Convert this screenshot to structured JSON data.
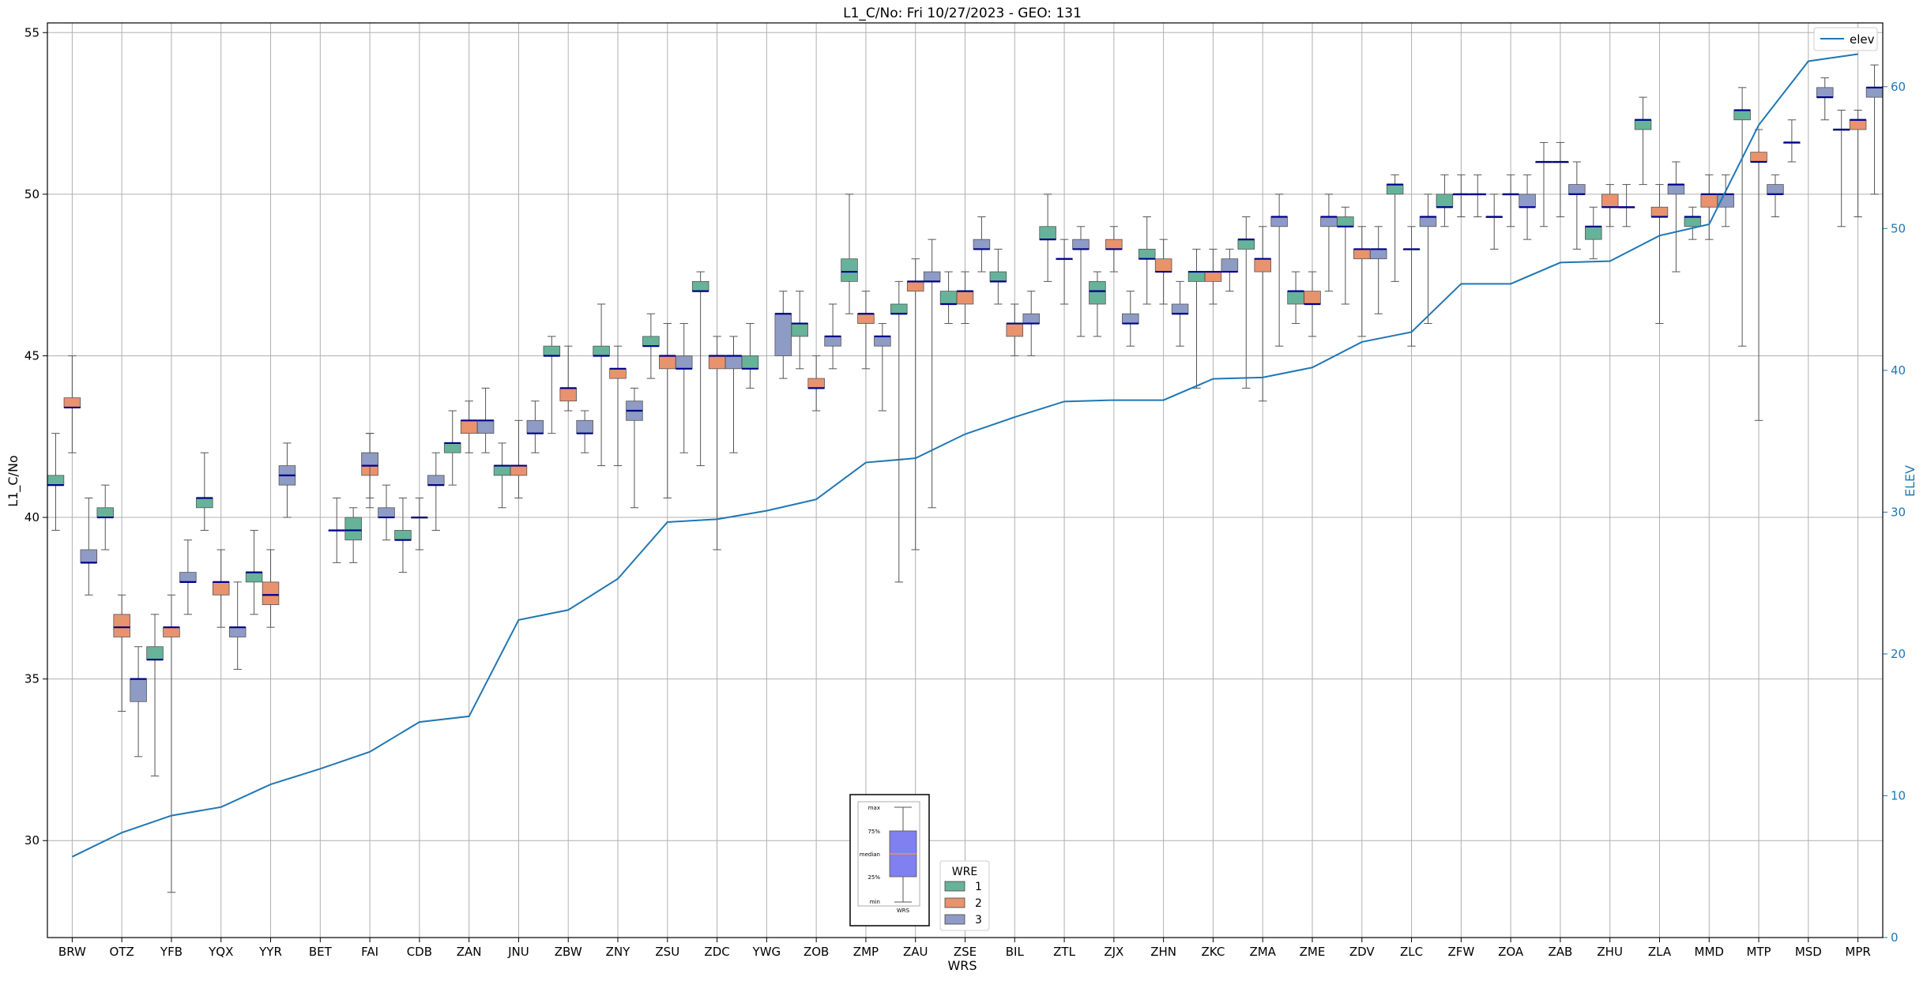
{
  "chart_data": {
    "type": "box",
    "title": "L1_C/No: Fri 10/27/2023 - GEO: 131",
    "xlabel": "WRS",
    "ylabel": "L1_C/No",
    "y2label": "ELEV",
    "ylim": [
      27,
      55.3
    ],
    "y2lim": [
      0,
      64.5
    ],
    "yticks": [
      30,
      35,
      40,
      45,
      50,
      55
    ],
    "y2ticks": [
      0,
      10,
      20,
      30,
      40,
      50,
      60
    ],
    "grid": true,
    "categories": [
      "BRW",
      "OTZ",
      "YFB",
      "YQX",
      "YYR",
      "BET",
      "FAI",
      "CDB",
      "ZAN",
      "JNU",
      "ZBW",
      "ZNY",
      "ZSU",
      "ZDC",
      "YWG",
      "ZOB",
      "ZMP",
      "ZAU",
      "ZSE",
      "BIL",
      "ZTL",
      "ZJX",
      "ZHN",
      "ZKC",
      "ZMA",
      "ZME",
      "ZDV",
      "ZLC",
      "ZFW",
      "ZOA",
      "ZAB",
      "ZHU",
      "ZLA",
      "MMD",
      "MTP",
      "MSD",
      "MPR"
    ],
    "wre_colors": {
      "1": "#66b39a",
      "2": "#e8936e",
      "3": "#8e9bc4"
    },
    "median_color": "#00008b",
    "line_color": "#1f77b4",
    "elev_series": {
      "name": "elev",
      "values": [
        5.7,
        7.4,
        8.6,
        9.2,
        10.8,
        11.9,
        13.1,
        15.2,
        15.6,
        22.4,
        23.1,
        25.3,
        29.3,
        29.5,
        30.1,
        30.9,
        33.5,
        33.8,
        35.5,
        36.7,
        37.8,
        37.9,
        37.9,
        39.4,
        39.5,
        40.2,
        42.0,
        42.7,
        46.1,
        46.1,
        47.6,
        47.7,
        49.5,
        50.3,
        57.3,
        61.8,
        62.3
      ]
    },
    "boxes": [
      {
        "cat": "BRW",
        "wre": "1",
        "min": 39.6,
        "q1": 41.0,
        "median": 41.0,
        "q3": 41.3,
        "max": 42.6
      },
      {
        "cat": "BRW",
        "wre": "2",
        "min": 42.0,
        "q1": 43.4,
        "median": 43.4,
        "q3": 43.7,
        "max": 45.0
      },
      {
        "cat": "BRW",
        "wre": "3",
        "min": 37.6,
        "q1": 38.6,
        "median": 38.6,
        "q3": 39.0,
        "max": 40.6
      },
      {
        "cat": "OTZ",
        "wre": "1",
        "min": 39.0,
        "q1": 40.0,
        "median": 40.0,
        "q3": 40.3,
        "max": 41.0
      },
      {
        "cat": "OTZ",
        "wre": "2",
        "min": 34.0,
        "q1": 36.3,
        "median": 36.6,
        "q3": 37.0,
        "max": 37.6
      },
      {
        "cat": "OTZ",
        "wre": "3",
        "min": 32.6,
        "q1": 34.3,
        "median": 35.0,
        "q3": 35.0,
        "max": 36.0
      },
      {
        "cat": "YFB",
        "wre": "1",
        "min": 32.0,
        "q1": 35.6,
        "median": 35.6,
        "q3": 36.0,
        "max": 37.0
      },
      {
        "cat": "YFB",
        "wre": "2",
        "min": 28.4,
        "q1": 36.3,
        "median": 36.6,
        "q3": 36.6,
        "max": 37.6
      },
      {
        "cat": "YFB",
        "wre": "3",
        "min": 37.0,
        "q1": 38.0,
        "median": 38.0,
        "q3": 38.3,
        "max": 39.3
      },
      {
        "cat": "YQX",
        "wre": "1",
        "min": 39.6,
        "q1": 40.3,
        "median": 40.6,
        "q3": 40.6,
        "max": 42.0
      },
      {
        "cat": "YQX",
        "wre": "2",
        "min": 36.6,
        "q1": 37.6,
        "median": 38.0,
        "q3": 38.0,
        "max": 39.0
      },
      {
        "cat": "YQX",
        "wre": "3",
        "min": 35.3,
        "q1": 36.3,
        "median": 36.6,
        "q3": 36.6,
        "max": 38.0
      },
      {
        "cat": "YYR",
        "wre": "1",
        "min": 37.0,
        "q1": 38.0,
        "median": 38.3,
        "q3": 38.3,
        "max": 39.6
      },
      {
        "cat": "YYR",
        "wre": "2",
        "min": 36.6,
        "q1": 37.3,
        "median": 37.6,
        "q3": 38.0,
        "max": 39.0
      },
      {
        "cat": "YYR",
        "wre": "3",
        "min": 40.0,
        "q1": 41.0,
        "median": 41.3,
        "q3": 41.6,
        "max": 42.3
      },
      {
        "cat": "BET",
        "wre": "3",
        "min": 38.6,
        "q1": 39.6,
        "median": 39.6,
        "q3": 39.6,
        "max": 40.6
      },
      {
        "cat": "FAI",
        "wre": "3",
        "min": 39.3,
        "q1": 40.0,
        "median": 40.0,
        "q3": 40.3,
        "max": 41.0
      },
      {
        "cat": "FAI",
        "wre": "1",
        "min": 38.6,
        "q1": 39.3,
        "median": 39.6,
        "q3": 40.0,
        "max": 40.3
      },
      {
        "cat": "FAI",
        "wre": "2",
        "min": 40.3,
        "q1": 41.3,
        "median": 41.6,
        "q3": 42.0,
        "max": 42.6
      },
      {
        "cat": "FAI",
        "wre": "3",
        "min": 40.6,
        "q1": 41.6,
        "median": 41.6,
        "q3": 42.0,
        "max": 42.6
      },
      {
        "cat": "CDB",
        "wre": "1",
        "min": 38.3,
        "q1": 39.3,
        "median": 39.3,
        "q3": 39.6,
        "max": 40.6
      },
      {
        "cat": "CDB",
        "wre": "2",
        "min": 39.0,
        "q1": 40.0,
        "median": 40.0,
        "q3": 40.0,
        "max": 40.6
      },
      {
        "cat": "CDB",
        "wre": "3",
        "min": 39.6,
        "q1": 41.0,
        "median": 41.0,
        "q3": 41.3,
        "max": 42.0
      },
      {
        "cat": "ZAN",
        "wre": "1",
        "min": 41.0,
        "q1": 42.0,
        "median": 42.3,
        "q3": 42.3,
        "max": 43.3
      },
      {
        "cat": "ZAN",
        "wre": "2",
        "min": 42.0,
        "q1": 42.6,
        "median": 43.0,
        "q3": 43.0,
        "max": 43.6
      },
      {
        "cat": "ZAN",
        "wre": "3",
        "min": 42.0,
        "q1": 42.6,
        "median": 43.0,
        "q3": 43.0,
        "max": 44.0
      },
      {
        "cat": "JNU",
        "wre": "1",
        "min": 40.3,
        "q1": 41.3,
        "median": 41.6,
        "q3": 41.6,
        "max": 42.3
      },
      {
        "cat": "JNU",
        "wre": "2",
        "min": 40.6,
        "q1": 41.3,
        "median": 41.6,
        "q3": 41.6,
        "max": 43.0
      },
      {
        "cat": "JNU",
        "wre": "3",
        "min": 42.0,
        "q1": 42.6,
        "median": 42.6,
        "q3": 43.0,
        "max": 43.6
      },
      {
        "cat": "ZBW",
        "wre": "1",
        "min": 42.6,
        "q1": 45.0,
        "median": 45.0,
        "q3": 45.3,
        "max": 45.6
      },
      {
        "cat": "ZBW",
        "wre": "2",
        "min": 43.3,
        "q1": 43.6,
        "median": 44.0,
        "q3": 44.0,
        "max": 45.3
      },
      {
        "cat": "ZBW",
        "wre": "3",
        "min": 42.0,
        "q1": 42.6,
        "median": 42.6,
        "q3": 43.0,
        "max": 43.3
      },
      {
        "cat": "ZNY",
        "wre": "1",
        "min": 41.6,
        "q1": 45.0,
        "median": 45.0,
        "q3": 45.3,
        "max": 46.6
      },
      {
        "cat": "ZNY",
        "wre": "2",
        "min": 41.6,
        "q1": 44.3,
        "median": 44.6,
        "q3": 44.6,
        "max": 45.3
      },
      {
        "cat": "ZNY",
        "wre": "3",
        "min": 40.3,
        "q1": 43.0,
        "median": 43.3,
        "q3": 43.6,
        "max": 44.0
      },
      {
        "cat": "ZSU",
        "wre": "1",
        "min": 44.3,
        "q1": 45.3,
        "median": 45.3,
        "q3": 45.6,
        "max": 46.3
      },
      {
        "cat": "ZSU",
        "wre": "2",
        "min": 40.6,
        "q1": 44.6,
        "median": 45.0,
        "q3": 45.0,
        "max": 46.0
      },
      {
        "cat": "ZSU",
        "wre": "3",
        "min": 42.0,
        "q1": 44.6,
        "median": 44.6,
        "q3": 45.0,
        "max": 46.0
      },
      {
        "cat": "ZDC",
        "wre": "1",
        "min": 41.6,
        "q1": 47.0,
        "median": 47.0,
        "q3": 47.3,
        "max": 47.6
      },
      {
        "cat": "ZDC",
        "wre": "2",
        "min": 39.0,
        "q1": 44.6,
        "median": 45.0,
        "q3": 45.0,
        "max": 45.6
      },
      {
        "cat": "ZDC",
        "wre": "3",
        "min": 42.0,
        "q1": 44.6,
        "median": 45.0,
        "q3": 45.0,
        "max": 45.6
      },
      {
        "cat": "YWG",
        "wre": "1",
        "min": 44.0,
        "q1": 44.6,
        "median": 44.6,
        "q3": 45.0,
        "max": 46.0
      },
      {
        "cat": "YWG",
        "wre": "3",
        "min": 44.3,
        "q1": 45.0,
        "median": 46.3,
        "q3": 46.3,
        "max": 47.0
      },
      {
        "cat": "ZOB",
        "wre": "1",
        "min": 44.6,
        "q1": 45.6,
        "median": 46.0,
        "q3": 46.0,
        "max": 47.0
      },
      {
        "cat": "ZOB",
        "wre": "2",
        "min": 43.3,
        "q1": 44.0,
        "median": 44.0,
        "q3": 44.3,
        "max": 45.0
      },
      {
        "cat": "ZOB",
        "wre": "3",
        "min": 44.6,
        "q1": 45.3,
        "median": 45.6,
        "q3": 45.6,
        "max": 46.6
      },
      {
        "cat": "ZMP",
        "wre": "1",
        "min": 46.3,
        "q1": 47.3,
        "median": 47.6,
        "q3": 48.0,
        "max": 50.0
      },
      {
        "cat": "ZMP",
        "wre": "2",
        "min": 44.6,
        "q1": 46.0,
        "median": 46.3,
        "q3": 46.3,
        "max": 47.0
      },
      {
        "cat": "ZMP",
        "wre": "3",
        "min": 43.3,
        "q1": 45.3,
        "median": 45.6,
        "q3": 45.6,
        "max": 46.0
      },
      {
        "cat": "ZAU",
        "wre": "1",
        "min": 38.0,
        "q1": 46.3,
        "median": 46.3,
        "q3": 46.6,
        "max": 47.3
      },
      {
        "cat": "ZAU",
        "wre": "2",
        "min": 39.0,
        "q1": 47.0,
        "median": 47.3,
        "q3": 47.3,
        "max": 48.0
      },
      {
        "cat": "ZAU",
        "wre": "3",
        "min": 40.3,
        "q1": 47.3,
        "median": 47.3,
        "q3": 47.6,
        "max": 48.6
      },
      {
        "cat": "ZSE",
        "wre": "1",
        "min": 46.0,
        "q1": 46.6,
        "median": 46.6,
        "q3": 47.0,
        "max": 47.6
      },
      {
        "cat": "ZSE",
        "wre": "2",
        "min": 46.0,
        "q1": 46.6,
        "median": 47.0,
        "q3": 47.0,
        "max": 47.6
      },
      {
        "cat": "ZSE",
        "wre": "3",
        "min": 47.6,
        "q1": 48.3,
        "median": 48.3,
        "q3": 48.6,
        "max": 49.3
      },
      {
        "cat": "BIL",
        "wre": "1",
        "min": 46.6,
        "q1": 47.3,
        "median": 47.3,
        "q3": 47.6,
        "max": 48.3
      },
      {
        "cat": "BIL",
        "wre": "2",
        "min": 45.0,
        "q1": 45.6,
        "median": 46.0,
        "q3": 46.0,
        "max": 46.6
      },
      {
        "cat": "BIL",
        "wre": "3",
        "min": 45.0,
        "q1": 46.0,
        "median": 46.0,
        "q3": 46.3,
        "max": 47.0
      },
      {
        "cat": "ZTL",
        "wre": "1",
        "min": 47.3,
        "q1": 48.6,
        "median": 48.6,
        "q3": 49.0,
        "max": 50.0
      },
      {
        "cat": "ZTL",
        "wre": "2",
        "min": 46.6,
        "q1": 48.0,
        "median": 48.0,
        "q3": 48.0,
        "max": 48.6
      },
      {
        "cat": "ZTL",
        "wre": "3",
        "min": 45.6,
        "q1": 48.3,
        "median": 48.3,
        "q3": 48.6,
        "max": 49.0
      },
      {
        "cat": "ZJX",
        "wre": "1",
        "min": 45.6,
        "q1": 46.6,
        "median": 47.0,
        "q3": 47.3,
        "max": 47.6
      },
      {
        "cat": "ZJX",
        "wre": "2",
        "min": 47.6,
        "q1": 48.3,
        "median": 48.3,
        "q3": 48.6,
        "max": 49.0
      },
      {
        "cat": "ZJX",
        "wre": "3",
        "min": 45.3,
        "q1": 46.0,
        "median": 46.0,
        "q3": 46.3,
        "max": 47.0
      },
      {
        "cat": "ZHN",
        "wre": "1",
        "min": 46.6,
        "q1": 48.0,
        "median": 48.0,
        "q3": 48.3,
        "max": 49.3
      },
      {
        "cat": "ZHN",
        "wre": "2",
        "min": 46.6,
        "q1": 47.6,
        "median": 47.6,
        "q3": 48.0,
        "max": 48.6
      },
      {
        "cat": "ZHN",
        "wre": "3",
        "min": 45.3,
        "q1": 46.3,
        "median": 46.3,
        "q3": 46.6,
        "max": 47.3
      },
      {
        "cat": "ZKC",
        "wre": "1",
        "min": 44.0,
        "q1": 47.3,
        "median": 47.6,
        "q3": 47.6,
        "max": 48.3
      },
      {
        "cat": "ZKC",
        "wre": "2",
        "min": 46.6,
        "q1": 47.3,
        "median": 47.6,
        "q3": 47.6,
        "max": 48.3
      },
      {
        "cat": "ZKC",
        "wre": "3",
        "min": 47.0,
        "q1": 47.6,
        "median": 47.6,
        "q3": 48.0,
        "max": 48.3
      },
      {
        "cat": "ZMA",
        "wre": "1",
        "min": 44.0,
        "q1": 48.3,
        "median": 48.6,
        "q3": 48.6,
        "max": 49.3
      },
      {
        "cat": "ZMA",
        "wre": "2",
        "min": 43.6,
        "q1": 47.6,
        "median": 48.0,
        "q3": 48.0,
        "max": 49.0
      },
      {
        "cat": "ZMA",
        "wre": "3",
        "min": 45.3,
        "q1": 49.0,
        "median": 49.3,
        "q3": 49.3,
        "max": 50.0
      },
      {
        "cat": "ZME",
        "wre": "1",
        "min": 46.0,
        "q1": 46.6,
        "median": 47.0,
        "q3": 47.0,
        "max": 47.6
      },
      {
        "cat": "ZME",
        "wre": "2",
        "min": 45.6,
        "q1": 46.6,
        "median": 46.6,
        "q3": 47.0,
        "max": 47.6
      },
      {
        "cat": "ZME",
        "wre": "3",
        "min": 47.0,
        "q1": 49.0,
        "median": 49.3,
        "q3": 49.3,
        "max": 50.0
      },
      {
        "cat": "ZDV",
        "wre": "1",
        "min": 46.6,
        "q1": 49.0,
        "median": 49.0,
        "q3": 49.3,
        "max": 49.6
      },
      {
        "cat": "ZDV",
        "wre": "2",
        "min": 45.6,
        "q1": 48.0,
        "median": 48.3,
        "q3": 48.3,
        "max": 49.0
      },
      {
        "cat": "ZDV",
        "wre": "3",
        "min": 46.3,
        "q1": 48.0,
        "median": 48.3,
        "q3": 48.3,
        "max": 49.0
      },
      {
        "cat": "ZLC",
        "wre": "1",
        "min": 47.3,
        "q1": 50.0,
        "median": 50.3,
        "q3": 50.3,
        "max": 50.6
      },
      {
        "cat": "ZLC",
        "wre": "2",
        "min": 45.3,
        "q1": 48.3,
        "median": 48.3,
        "q3": 48.3,
        "max": 49.0
      },
      {
        "cat": "ZLC",
        "wre": "3",
        "min": 46.0,
        "q1": 49.0,
        "median": 49.3,
        "q3": 49.3,
        "max": 50.0
      },
      {
        "cat": "ZFW",
        "wre": "1",
        "min": 49.0,
        "q1": 49.6,
        "median": 49.6,
        "q3": 50.0,
        "max": 50.6
      },
      {
        "cat": "ZFW",
        "wre": "2",
        "min": 49.3,
        "q1": 50.0,
        "median": 50.0,
        "q3": 50.0,
        "max": 50.6
      },
      {
        "cat": "ZFW",
        "wre": "3",
        "min": 49.3,
        "q1": 50.0,
        "median": 50.0,
        "q3": 50.0,
        "max": 50.6
      },
      {
        "cat": "ZOA",
        "wre": "1",
        "min": 48.3,
        "q1": 49.3,
        "median": 49.3,
        "q3": 49.3,
        "max": 50.0
      },
      {
        "cat": "ZOA",
        "wre": "2",
        "min": 49.0,
        "q1": 50.0,
        "median": 50.0,
        "q3": 50.0,
        "max": 50.6
      },
      {
        "cat": "ZOA",
        "wre": "3",
        "min": 48.6,
        "q1": 49.6,
        "median": 49.6,
        "q3": 50.0,
        "max": 50.6
      },
      {
        "cat": "ZAB",
        "wre": "1",
        "min": 49.0,
        "q1": 51.0,
        "median": 51.0,
        "q3": 51.0,
        "max": 51.6
      },
      {
        "cat": "ZAB",
        "wre": "2",
        "min": 49.3,
        "q1": 51.0,
        "median": 51.0,
        "q3": 51.0,
        "max": 51.6
      },
      {
        "cat": "ZAB",
        "wre": "3",
        "min": 48.3,
        "q1": 50.0,
        "median": 50.0,
        "q3": 50.3,
        "max": 51.0
      },
      {
        "cat": "ZHU",
        "wre": "1",
        "min": 48.0,
        "q1": 48.6,
        "median": 49.0,
        "q3": 49.0,
        "max": 49.6
      },
      {
        "cat": "ZHU",
        "wre": "2",
        "min": 49.0,
        "q1": 49.6,
        "median": 49.6,
        "q3": 50.0,
        "max": 50.3
      },
      {
        "cat": "ZHU",
        "wre": "3",
        "min": 49.0,
        "q1": 49.6,
        "median": 49.6,
        "q3": 49.6,
        "max": 50.3
      },
      {
        "cat": "ZLA",
        "wre": "1",
        "min": 50.3,
        "q1": 52.0,
        "median": 52.3,
        "q3": 52.3,
        "max": 53.0
      },
      {
        "cat": "ZLA",
        "wre": "2",
        "min": 46.0,
        "q1": 49.3,
        "median": 49.3,
        "q3": 49.6,
        "max": 50.3
      },
      {
        "cat": "ZLA",
        "wre": "3",
        "min": 47.6,
        "q1": 50.0,
        "median": 50.3,
        "q3": 50.3,
        "max": 51.0
      },
      {
        "cat": "MMD",
        "wre": "1",
        "min": 48.6,
        "q1": 49.0,
        "median": 49.3,
        "q3": 49.3,
        "max": 49.6
      },
      {
        "cat": "MMD",
        "wre": "2",
        "min": 48.6,
        "q1": 49.6,
        "median": 50.0,
        "q3": 50.0,
        "max": 50.6
      },
      {
        "cat": "MMD",
        "wre": "3",
        "min": 49.0,
        "q1": 49.6,
        "median": 50.0,
        "q3": 50.0,
        "max": 50.6
      },
      {
        "cat": "MTP",
        "wre": "1",
        "min": 45.3,
        "q1": 52.3,
        "median": 52.6,
        "q3": 52.6,
        "max": 53.3
      },
      {
        "cat": "MTP",
        "wre": "2",
        "min": 43.0,
        "q1": 51.0,
        "median": 51.0,
        "q3": 51.3,
        "max": 52.0
      },
      {
        "cat": "MTP",
        "wre": "3",
        "min": 49.3,
        "q1": 50.0,
        "median": 50.0,
        "q3": 50.3,
        "max": 50.6
      },
      {
        "cat": "MSD",
        "wre": "1",
        "min": 51.0,
        "q1": 51.6,
        "median": 51.6,
        "q3": 51.6,
        "max": 52.3
      },
      {
        "cat": "MSD",
        "wre": "3",
        "min": 52.3,
        "q1": 53.0,
        "median": 53.0,
        "q3": 53.3,
        "max": 53.6
      },
      {
        "cat": "MPR",
        "wre": "1",
        "min": 49.0,
        "q1": 52.0,
        "median": 52.0,
        "q3": 52.0,
        "max": 52.6
      },
      {
        "cat": "MPR",
        "wre": "2",
        "min": 49.3,
        "q1": 52.0,
        "median": 52.3,
        "q3": 52.3,
        "max": 52.6
      },
      {
        "cat": "MPR",
        "wre": "3",
        "min": 50.0,
        "q1": 53.0,
        "median": 53.3,
        "q3": 53.3,
        "max": 54.0
      }
    ],
    "legend_line": {
      "label": "elev",
      "placement": "top-right"
    },
    "legend_wre": {
      "title": "WRE",
      "items": [
        "1",
        "2",
        "3"
      ],
      "placement": "bottom-center"
    },
    "key_box": {
      "labels": [
        "max",
        "75%",
        "median",
        "25%",
        "min"
      ],
      "xlabel": "WRS",
      "face_color": "#8080f0",
      "median_color": "#f0a030"
    }
  }
}
